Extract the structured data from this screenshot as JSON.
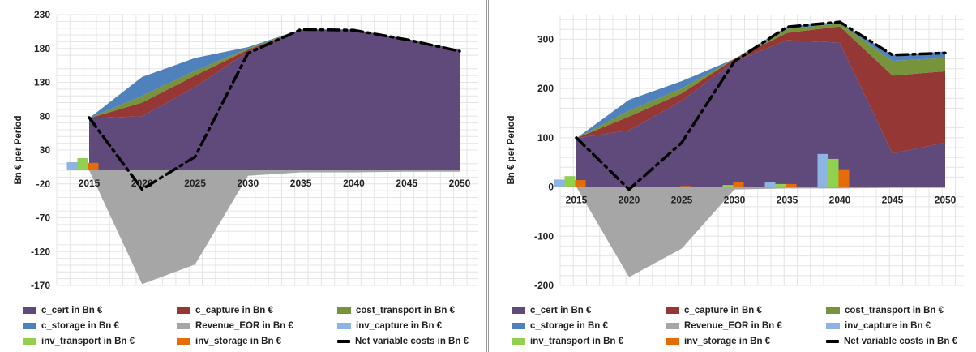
{
  "chart_data": [
    {
      "type": "area",
      "title": "",
      "xlabel": "",
      "ylabel": "Bn € per Period",
      "ylim": [
        -170,
        230
      ],
      "yticks": [
        230,
        180,
        130,
        80,
        30,
        -20,
        -70,
        -120,
        -170
      ],
      "categories": [
        "2015",
        "2020",
        "2025",
        "2030",
        "2035",
        "2040",
        "2045",
        "2050"
      ],
      "grid": true,
      "stacked_positive": [
        {
          "name": "c_cert in Bn €",
          "color": "#604A7B",
          "values": [
            77,
            80,
            123,
            175,
            208,
            208,
            194,
            178
          ]
        },
        {
          "name": "c_capture in Bn €",
          "color": "#953735",
          "values": [
            0,
            20,
            17,
            3,
            0,
            0,
            0,
            0
          ]
        },
        {
          "name": "cost_transport in Bn €",
          "color": "#77933C",
          "values": [
            0,
            10,
            7,
            2,
            0,
            0,
            0,
            0
          ]
        },
        {
          "name": "c_storage in Bn €",
          "color": "#4F81BD",
          "values": [
            0,
            28,
            19,
            2,
            0,
            0,
            0,
            0
          ]
        }
      ],
      "negative_area": {
        "name": "Revenue_EOR in Bn €",
        "color": "#A6A6A6",
        "values": [
          0,
          -168,
          -139,
          -8,
          -3,
          -3,
          -2,
          -2
        ]
      },
      "bars": [
        {
          "name": "inv_capture in Bn €",
          "color": "#8DB4E2",
          "values": [
            12,
            0,
            0,
            0,
            0,
            0,
            0,
            0
          ]
        },
        {
          "name": "inv_transport in Bn €",
          "color": "#92D050",
          "values": [
            18,
            0,
            0,
            0,
            0,
            0,
            0,
            0
          ]
        },
        {
          "name": "inv_storage in Bn €",
          "color": "#E46C0A",
          "values": [
            11,
            0,
            0,
            0,
            0,
            0,
            0,
            0
          ]
        }
      ],
      "line": {
        "name": "Net variable costs in Bn €",
        "color": "#000000",
        "style": "dash-dot",
        "values": [
          78,
          -28,
          20,
          173,
          208,
          207,
          193,
          176
        ]
      }
    },
    {
      "type": "area",
      "title": "",
      "xlabel": "",
      "ylabel": "Bn € per Period",
      "ylim": [
        -200,
        350
      ],
      "yticks": [
        300,
        200,
        100,
        0,
        -100,
        -200
      ],
      "categories": [
        "2015",
        "2020",
        "2025",
        "2030",
        "2035",
        "2040",
        "2045",
        "2050"
      ],
      "grid": true,
      "stacked_positive": [
        {
          "name": "c_cert in Bn €",
          "color": "#604A7B",
          "values": [
            99,
            115,
            175,
            255,
            298,
            293,
            68,
            90
          ]
        },
        {
          "name": "c_capture in Bn €",
          "color": "#953735",
          "values": [
            0,
            28,
            15,
            5,
            15,
            33,
            158,
            145
          ]
        },
        {
          "name": "cost_transport in Bn €",
          "color": "#77933C",
          "values": [
            0,
            12,
            10,
            0,
            8,
            6,
            30,
            27
          ]
        },
        {
          "name": "c_storage in Bn €",
          "color": "#4F81BD",
          "values": [
            0,
            22,
            15,
            0,
            5,
            3,
            12,
            13
          ]
        }
      ],
      "negative_area": {
        "name": "Revenue_EOR in Bn €",
        "color": "#A6A6A6",
        "values": [
          0,
          -183,
          -125,
          -5,
          -3,
          -3,
          -2,
          -2
        ]
      },
      "bars": [
        {
          "name": "inv_capture in Bn €",
          "color": "#8DB4E2",
          "values": [
            15,
            0,
            0,
            0,
            10,
            67,
            0,
            0
          ]
        },
        {
          "name": "inv_transport in Bn €",
          "color": "#92D050",
          "values": [
            22,
            0,
            0,
            4,
            6,
            57,
            0,
            0
          ]
        },
        {
          "name": "inv_storage in Bn €",
          "color": "#E46C0A",
          "values": [
            14,
            0,
            2,
            10,
            6,
            36,
            0,
            0
          ]
        }
      ],
      "line": {
        "name": "Net variable costs in Bn €",
        "color": "#000000",
        "style": "dash-dot",
        "values": [
          100,
          -5,
          90,
          255,
          325,
          335,
          268,
          272
        ]
      }
    }
  ],
  "legend": [
    {
      "label": "c_cert in Bn €",
      "color": "#604A7B",
      "kind": "box"
    },
    {
      "label": "c_capture in Bn €",
      "color": "#953735",
      "kind": "box"
    },
    {
      "label": "cost_transport in Bn €",
      "color": "#77933C",
      "kind": "box"
    },
    {
      "label": "c_storage in Bn €",
      "color": "#4F81BD",
      "kind": "box"
    },
    {
      "label": "Revenue_EOR in Bn €",
      "color": "#A6A6A6",
      "kind": "box"
    },
    {
      "label": "inv_capture in Bn €",
      "color": "#8DB4E2",
      "kind": "box"
    },
    {
      "label": "inv_transport in Bn €",
      "color": "#92D050",
      "kind": "box"
    },
    {
      "label": "inv_storage in Bn €",
      "color": "#E46C0A",
      "kind": "box"
    },
    {
      "label": "Net variable costs in Bn €",
      "color": "#000000",
      "kind": "line"
    }
  ]
}
